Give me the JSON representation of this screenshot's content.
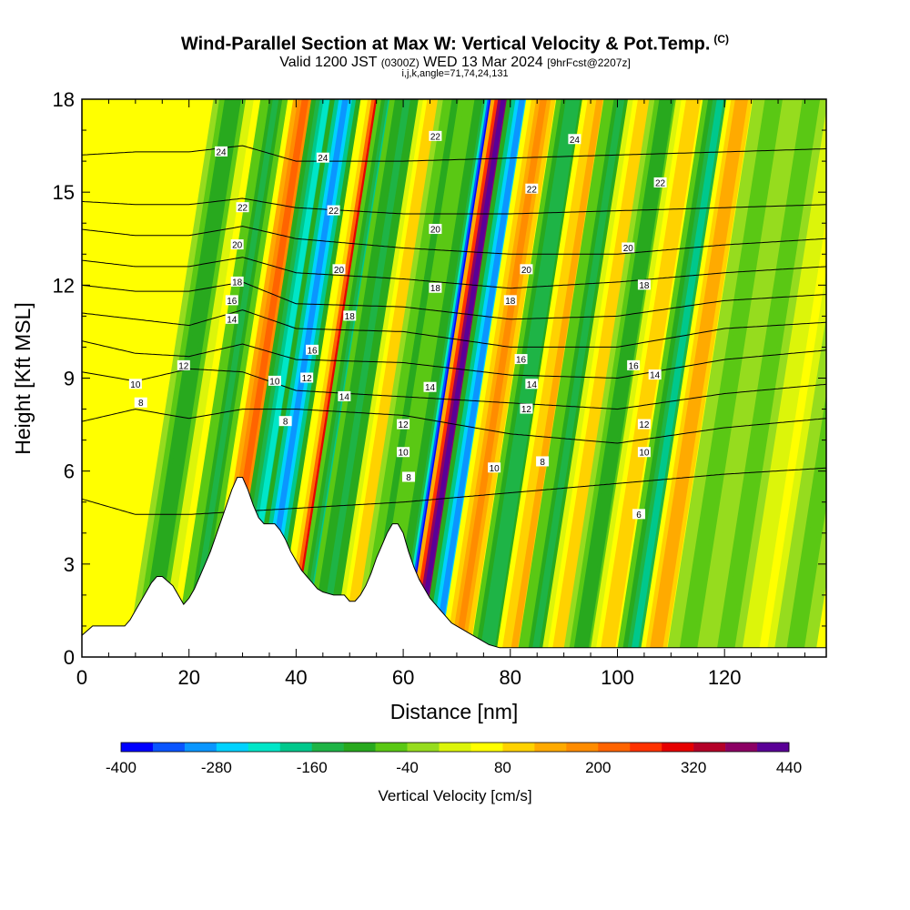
{
  "title": {
    "main": "Wind-Parallel Section at Max W: Vertical Velocity & Pot.Temp.",
    "copyright": "(C)",
    "valid_pre": "Valid 1200 JST",
    "valid_utc": "(0300Z)",
    "valid_date": "WED 13 Mar 2024",
    "valid_fcst": "[9hrFcst@2207z]",
    "ijk": "i,j,k,angle=71,74,24,131"
  },
  "chart_data": {
    "type": "heatmap",
    "xlabel": "Distance [nm]",
    "ylabel": "Height [Kft MSL]",
    "xlim": [
      0,
      139
    ],
    "ylim": [
      0,
      18
    ],
    "x_ticks": [
      0,
      20,
      40,
      60,
      80,
      100,
      120
    ],
    "y_ticks": [
      0,
      3,
      6,
      9,
      12,
      15,
      18
    ],
    "colorbar": {
      "label": "Vertical Velocity [cm/s]",
      "tick_labels": [
        "-400",
        "-280",
        "-160",
        "-40",
        "80",
        "200",
        "320",
        "440"
      ],
      "tick_values": [
        -400,
        -280,
        -160,
        -40,
        80,
        200,
        320,
        440
      ],
      "colors": [
        "#0000ff",
        "#0a55ff",
        "#0a96ff",
        "#00d2ff",
        "#00e6c8",
        "#00c88c",
        "#1eb446",
        "#28a91e",
        "#5ac814",
        "#96dc1e",
        "#dcf50a",
        "#ffff00",
        "#ffd200",
        "#ffaa00",
        "#ff8c00",
        "#ff6400",
        "#ff3200",
        "#e60000",
        "#b40028",
        "#8c0064",
        "#5a0096"
      ]
    },
    "velocity_bands": [
      {
        "x": 12.0,
        "w": 2.8,
        "v": -100
      },
      {
        "x": 17.0,
        "w": 2.0,
        "v": 60
      },
      {
        "x": 20.0,
        "w": 2.2,
        "v": -130
      },
      {
        "x": 25.5,
        "w": 2.5,
        "v": 200
      },
      {
        "x": 29.5,
        "w": 2.2,
        "v": -230
      },
      {
        "x": 33.0,
        "w": 2.2,
        "v": -290
      },
      {
        "x": 39.5,
        "w": 1.8,
        "v": 340
      },
      {
        "x": 41.5,
        "w": 2.0,
        "v": -170
      },
      {
        "x": 44.5,
        "w": 2.5,
        "v": -140
      },
      {
        "x": 49.5,
        "w": 2.2,
        "v": 110
      },
      {
        "x": 53.5,
        "w": 2.5,
        "v": -90
      },
      {
        "x": 58.5,
        "w": 2.5,
        "v": -120
      },
      {
        "x": 60.2,
        "w": 1.2,
        "v": -400
      },
      {
        "x": 62.5,
        "w": 1.8,
        "v": 440
      },
      {
        "x": 66.0,
        "w": 2.2,
        "v": -290
      },
      {
        "x": 70.0,
        "w": 2.5,
        "v": 160
      },
      {
        "x": 75.5,
        "w": 2.4,
        "v": -150
      },
      {
        "x": 80.5,
        "w": 2.5,
        "v": 140
      },
      {
        "x": 84.5,
        "w": 2.5,
        "v": -130
      },
      {
        "x": 89.0,
        "w": 2.5,
        "v": 110
      },
      {
        "x": 93.0,
        "w": 2.5,
        "v": -110
      },
      {
        "x": 98.0,
        "w": 2.5,
        "v": 100
      },
      {
        "x": 103.0,
        "w": 2.5,
        "v": -170
      },
      {
        "x": 107.0,
        "w": 2.2,
        "v": 150
      },
      {
        "x": 113.0,
        "w": 3.0,
        "v": -60
      },
      {
        "x": 120.0,
        "w": 3.0,
        "v": -50
      },
      {
        "x": 127.0,
        "w": 3.0,
        "v": 40
      },
      {
        "x": 133.0,
        "w": 3.0,
        "v": -50
      }
    ],
    "terrain": {
      "x": [
        0,
        2,
        8,
        9,
        10,
        11,
        12,
        13,
        14,
        15,
        17,
        18,
        19,
        20,
        21,
        22,
        23,
        24,
        25,
        26,
        27,
        28,
        29,
        30,
        31,
        32,
        33,
        34,
        35,
        36,
        37,
        38,
        39,
        40,
        41,
        42,
        43,
        44,
        45,
        47,
        49,
        50,
        51,
        52,
        53,
        54,
        55,
        56,
        57,
        58,
        59,
        60,
        61,
        62,
        63,
        64,
        65,
        66,
        67,
        68,
        69,
        70,
        72,
        74,
        76,
        78,
        139
      ],
      "y": [
        0.7,
        1.0,
        1.0,
        1.2,
        1.5,
        1.8,
        2.1,
        2.4,
        2.6,
        2.6,
        2.3,
        2.0,
        1.7,
        1.9,
        2.2,
        2.6,
        3.0,
        3.4,
        3.9,
        4.4,
        4.9,
        5.4,
        5.8,
        5.8,
        5.4,
        4.9,
        4.5,
        4.3,
        4.3,
        4.3,
        4.1,
        3.8,
        3.4,
        3.1,
        2.8,
        2.6,
        2.4,
        2.2,
        2.1,
        2.0,
        2.0,
        1.8,
        1.8,
        2.0,
        2.3,
        2.7,
        3.2,
        3.6,
        4.0,
        4.3,
        4.3,
        4.0,
        3.4,
        2.9,
        2.5,
        2.2,
        1.9,
        1.7,
        1.5,
        1.3,
        1.1,
        1.0,
        0.8,
        0.6,
        0.4,
        0.3,
        0.3
      ]
    },
    "contours": [
      {
        "label": "6",
        "points": [
          [
            0,
            5.1
          ],
          [
            10,
            4.6
          ],
          [
            20,
            4.6
          ],
          [
            40,
            4.8
          ],
          [
            60,
            5.0
          ],
          [
            80,
            5.3
          ],
          [
            100,
            5.6
          ],
          [
            120,
            5.9
          ],
          [
            139,
            6.1
          ]
        ]
      },
      {
        "label": "8",
        "points": [
          [
            0,
            7.6
          ],
          [
            10,
            8.0
          ],
          [
            20,
            7.7
          ],
          [
            30,
            8.0
          ],
          [
            40,
            8.0
          ],
          [
            60,
            7.8
          ],
          [
            80,
            7.2
          ],
          [
            100,
            6.9
          ],
          [
            120,
            7.4
          ],
          [
            139,
            7.7
          ]
        ]
      },
      {
        "label": "10",
        "points": [
          [
            0,
            9.2
          ],
          [
            10,
            8.9
          ],
          [
            20,
            9.3
          ],
          [
            30,
            9.2
          ],
          [
            40,
            8.6
          ],
          [
            60,
            8.4
          ],
          [
            80,
            8.2
          ],
          [
            100,
            8.0
          ],
          [
            120,
            8.5
          ],
          [
            139,
            8.8
          ]
        ]
      },
      {
        "label": "12",
        "points": [
          [
            0,
            10.2
          ],
          [
            10,
            9.8
          ],
          [
            20,
            9.7
          ],
          [
            30,
            10.1
          ],
          [
            40,
            9.6
          ],
          [
            60,
            9.5
          ],
          [
            80,
            9.1
          ],
          [
            100,
            9.0
          ],
          [
            120,
            9.6
          ],
          [
            139,
            9.9
          ]
        ]
      },
      {
        "label": "14",
        "points": [
          [
            0,
            11.1
          ],
          [
            10,
            10.9
          ],
          [
            20,
            10.7
          ],
          [
            30,
            11.2
          ],
          [
            40,
            10.6
          ],
          [
            60,
            10.5
          ],
          [
            80,
            10.0
          ],
          [
            100,
            10.0
          ],
          [
            120,
            10.6
          ],
          [
            139,
            10.8
          ]
        ]
      },
      {
        "label": "16",
        "points": [
          [
            0,
            12.0
          ],
          [
            10,
            11.8
          ],
          [
            20,
            11.8
          ],
          [
            30,
            12.1
          ],
          [
            40,
            11.4
          ],
          [
            60,
            11.3
          ],
          [
            80,
            10.9
          ],
          [
            100,
            11.0
          ],
          [
            120,
            11.5
          ],
          [
            139,
            11.7
          ]
        ]
      },
      {
        "label": "18",
        "points": [
          [
            0,
            12.8
          ],
          [
            10,
            12.6
          ],
          [
            20,
            12.6
          ],
          [
            30,
            12.9
          ],
          [
            40,
            12.4
          ],
          [
            60,
            12.2
          ],
          [
            80,
            11.9
          ],
          [
            100,
            12.1
          ],
          [
            120,
            12.4
          ],
          [
            139,
            12.6
          ]
        ]
      },
      {
        "label": "20",
        "points": [
          [
            0,
            13.8
          ],
          [
            10,
            13.6
          ],
          [
            20,
            13.6
          ],
          [
            30,
            13.9
          ],
          [
            40,
            13.5
          ],
          [
            60,
            13.2
          ],
          [
            80,
            13.0
          ],
          [
            100,
            13.0
          ],
          [
            120,
            13.3
          ],
          [
            139,
            13.5
          ]
        ]
      },
      {
        "label": "22",
        "points": [
          [
            0,
            14.7
          ],
          [
            10,
            14.6
          ],
          [
            20,
            14.6
          ],
          [
            30,
            14.8
          ],
          [
            40,
            14.5
          ],
          [
            60,
            14.3
          ],
          [
            80,
            14.3
          ],
          [
            100,
            14.4
          ],
          [
            120,
            14.5
          ],
          [
            139,
            14.6
          ]
        ]
      },
      {
        "label": "24",
        "points": [
          [
            0,
            16.2
          ],
          [
            10,
            16.3
          ],
          [
            20,
            16.3
          ],
          [
            30,
            16.5
          ],
          [
            40,
            16.0
          ],
          [
            60,
            16.0
          ],
          [
            80,
            16.1
          ],
          [
            100,
            16.2
          ],
          [
            120,
            16.3
          ],
          [
            139,
            16.4
          ]
        ]
      }
    ],
    "contour_labels": [
      {
        "text": "24",
        "x": 26,
        "y": 16.3
      },
      {
        "text": "24",
        "x": 45,
        "y": 16.1
      },
      {
        "text": "24",
        "x": 92,
        "y": 16.7
      },
      {
        "text": "22",
        "x": 30,
        "y": 14.5
      },
      {
        "text": "22",
        "x": 47,
        "y": 14.4
      },
      {
        "text": "22",
        "x": 66,
        "y": 16.8
      },
      {
        "text": "22",
        "x": 84,
        "y": 15.1
      },
      {
        "text": "22",
        "x": 108,
        "y": 15.3
      },
      {
        "text": "20",
        "x": 29,
        "y": 13.3
      },
      {
        "text": "20",
        "x": 48,
        "y": 12.5
      },
      {
        "text": "20",
        "x": 66,
        "y": 13.8
      },
      {
        "text": "20",
        "x": 83,
        "y": 12.5
      },
      {
        "text": "20",
        "x": 102,
        "y": 13.2
      },
      {
        "text": "18",
        "x": 29,
        "y": 12.1
      },
      {
        "text": "18",
        "x": 50,
        "y": 11.0
      },
      {
        "text": "18",
        "x": 66,
        "y": 11.9
      },
      {
        "text": "18",
        "x": 80,
        "y": 11.5
      },
      {
        "text": "18",
        "x": 105,
        "y": 12.0
      },
      {
        "text": "16",
        "x": 28,
        "y": 11.5
      },
      {
        "text": "16",
        "x": 43,
        "y": 9.9
      },
      {
        "text": "16",
        "x": 82,
        "y": 9.6
      },
      {
        "text": "16",
        "x": 103,
        "y": 9.4
      },
      {
        "text": "14",
        "x": 28,
        "y": 10.9
      },
      {
        "text": "14",
        "x": 49,
        "y": 8.4
      },
      {
        "text": "14",
        "x": 65,
        "y": 8.7
      },
      {
        "text": "14",
        "x": 84,
        "y": 8.8
      },
      {
        "text": "14",
        "x": 107,
        "y": 9.1
      },
      {
        "text": "12",
        "x": 19,
        "y": 9.4
      },
      {
        "text": "12",
        "x": 42,
        "y": 9.0
      },
      {
        "text": "12",
        "x": 60,
        "y": 7.5
      },
      {
        "text": "12",
        "x": 83,
        "y": 8.0
      },
      {
        "text": "12",
        "x": 105,
        "y": 7.5
      },
      {
        "text": "10",
        "x": 10,
        "y": 8.8
      },
      {
        "text": "10",
        "x": 36,
        "y": 8.9
      },
      {
        "text": "10",
        "x": 60,
        "y": 6.6
      },
      {
        "text": "10",
        "x": 77,
        "y": 6.1
      },
      {
        "text": "10",
        "x": 105,
        "y": 6.6
      },
      {
        "text": "8",
        "x": 11,
        "y": 8.2
      },
      {
        "text": "8",
        "x": 38,
        "y": 7.6
      },
      {
        "text": "8",
        "x": 61,
        "y": 5.8
      },
      {
        "text": "8",
        "x": 86,
        "y": 6.3
      },
      {
        "text": "6",
        "x": 104,
        "y": 4.6
      }
    ]
  }
}
